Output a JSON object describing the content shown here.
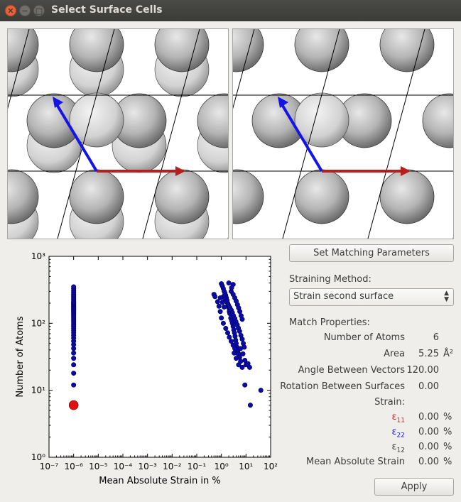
{
  "window": {
    "title": "Select Surface Cells"
  },
  "buttons": {
    "set_matching": "Set Matching Parameters",
    "set_matching_mnemonic": "S",
    "apply": "Apply",
    "apply_mnemonic": "A"
  },
  "straining": {
    "label": "Straining Method:",
    "selected": "Strain second surface"
  },
  "match": {
    "header": "Match Properties:",
    "rows": [
      {
        "label": "Number of Atoms",
        "value": "6",
        "unit": ""
      },
      {
        "label": "Area",
        "value": "5.25",
        "unit": "Å²"
      },
      {
        "label": "Angle Between Vectors",
        "value": "120.00",
        "unit": ""
      },
      {
        "label": "Rotation Between Surfaces",
        "value": "0.00",
        "unit": ""
      }
    ],
    "strain_header": "Strain:",
    "strain_rows": [
      {
        "label": "ε",
        "sub": "11",
        "value": "0.00",
        "unit": "%",
        "color": "#e01b1b"
      },
      {
        "label": "ε",
        "sub": "22",
        "value": "0.00",
        "unit": "%",
        "color": "#1b1be0"
      },
      {
        "label": "ε",
        "sub": "12",
        "value": "0.00",
        "unit": "%",
        "color": "#3c3c3c"
      }
    ],
    "mean_label": "Mean Absolute Strain",
    "mean_value": "0.00",
    "mean_unit": "%"
  },
  "chart_data": {
    "type": "scatter",
    "xlabel": "Mean Absolute Strain in %",
    "ylabel": "Number of Atoms",
    "xscale": "log",
    "yscale": "log",
    "xlim": [
      1e-07,
      100
    ],
    "ylim": [
      1,
      1000
    ],
    "x_ticks": [
      "10⁻⁷",
      "10⁻⁶",
      "10⁻⁵",
      "10⁻⁴",
      "10⁻³",
      "10⁻²",
      "10⁻¹",
      "10⁰",
      "10¹",
      "10²"
    ],
    "y_ticks": [
      "10⁰",
      "10¹",
      "10²",
      "10³"
    ],
    "series": [
      {
        "color": "#0a0aa8",
        "points": [
          [
            1e-06,
            12
          ],
          [
            1e-06,
            18
          ],
          [
            1e-06,
            24
          ],
          [
            1e-06,
            30
          ],
          [
            1e-06,
            36
          ],
          [
            1e-06,
            42
          ],
          [
            1e-06,
            48
          ],
          [
            1e-06,
            54
          ],
          [
            1e-06,
            60
          ],
          [
            1e-06,
            66
          ],
          [
            1e-06,
            72
          ],
          [
            1e-06,
            78
          ],
          [
            1e-06,
            84
          ],
          [
            1e-06,
            90
          ],
          [
            1e-06,
            96
          ],
          [
            1e-06,
            102
          ],
          [
            1e-06,
            108
          ],
          [
            1e-06,
            114
          ],
          [
            1e-06,
            120
          ],
          [
            1e-06,
            126
          ],
          [
            1e-06,
            132
          ],
          [
            1e-06,
            138
          ],
          [
            1e-06,
            144
          ],
          [
            1e-06,
            150
          ],
          [
            1e-06,
            156
          ],
          [
            1e-06,
            162
          ],
          [
            1e-06,
            168
          ],
          [
            1e-06,
            174
          ],
          [
            1e-06,
            180
          ],
          [
            1e-06,
            186
          ],
          [
            1e-06,
            192
          ],
          [
            1e-06,
            198
          ],
          [
            1e-06,
            204
          ],
          [
            1e-06,
            210
          ],
          [
            1e-06,
            222
          ],
          [
            1e-06,
            234
          ],
          [
            1e-06,
            246
          ],
          [
            1e-06,
            258
          ],
          [
            1e-06,
            270
          ],
          [
            1e-06,
            290
          ],
          [
            1e-06,
            310
          ],
          [
            1e-06,
            330
          ],
          [
            1e-06,
            350
          ],
          [
            0.5,
            270
          ],
          [
            0.55,
            250
          ],
          [
            0.7,
            210
          ],
          [
            0.8,
            180
          ],
          [
            0.9,
            150
          ],
          [
            1.0,
            390
          ],
          [
            1.1,
            360
          ],
          [
            1.2,
            330
          ],
          [
            1.3,
            300
          ],
          [
            1.4,
            280
          ],
          [
            1.5,
            260
          ],
          [
            1.6,
            240
          ],
          [
            1.7,
            220
          ],
          [
            1.8,
            200
          ],
          [
            1.9,
            185
          ],
          [
            2.0,
            170
          ],
          [
            2.1,
            150
          ],
          [
            2.2,
            140
          ],
          [
            2.4,
            120
          ],
          [
            2.6,
            110
          ],
          [
            2.8,
            100
          ],
          [
            3.0,
            90
          ],
          [
            3.2,
            80
          ],
          [
            3.4,
            72
          ],
          [
            3.6,
            64
          ],
          [
            3.8,
            56
          ],
          [
            4.0,
            50
          ],
          [
            4.3,
            44
          ],
          [
            4.6,
            38
          ],
          [
            5.0,
            35
          ],
          [
            5.5,
            31
          ],
          [
            6.0,
            27
          ],
          [
            1.2,
            250
          ],
          [
            1.4,
            230
          ],
          [
            1.6,
            210
          ],
          [
            1.9,
            190
          ],
          [
            2.2,
            172
          ],
          [
            2.5,
            158
          ],
          [
            2.8,
            144
          ],
          [
            3.1,
            130
          ],
          [
            3.5,
            118
          ],
          [
            3.9,
            106
          ],
          [
            4.4,
            95
          ],
          [
            4.9,
            85
          ],
          [
            5.5,
            76
          ],
          [
            6.2,
            66
          ],
          [
            7.0,
            58
          ],
          [
            7.8,
            50
          ],
          [
            8.5,
            44
          ],
          [
            2.5,
            300
          ],
          [
            3.0,
            270
          ],
          [
            3.5,
            240
          ],
          [
            4.0,
            215
          ],
          [
            4.5,
            190
          ],
          [
            5.0,
            170
          ],
          [
            5.6,
            150
          ],
          [
            6.3,
            130
          ],
          [
            7.0,
            115
          ],
          [
            1.0,
            120
          ],
          [
            1.2,
            100
          ],
          [
            1.5,
            84
          ],
          [
            1.8,
            72
          ],
          [
            2.1,
            62
          ],
          [
            2.5,
            54
          ],
          [
            3.0,
            47
          ],
          [
            3.5,
            42
          ],
          [
            4.2,
            36
          ],
          [
            6.0,
            42
          ],
          [
            7.5,
            35
          ],
          [
            9.0,
            28
          ],
          [
            10,
            24
          ],
          [
            12,
            25
          ],
          [
            14,
            22
          ],
          [
            7,
            22
          ],
          [
            9,
            12
          ],
          [
            15,
            6
          ],
          [
            40,
            10
          ],
          [
            2,
            400
          ],
          [
            3,
            380
          ],
          [
            2.6,
            340
          ],
          [
            0.9,
            240
          ],
          [
            1.1,
            205
          ],
          [
            1.3,
            175
          ],
          [
            5,
            24
          ],
          [
            4,
            30
          ],
          [
            3.3,
            36
          ]
        ]
      },
      {
        "color": "#e01010",
        "highlight": true,
        "points": [
          [
            1e-06,
            6
          ]
        ]
      }
    ]
  }
}
